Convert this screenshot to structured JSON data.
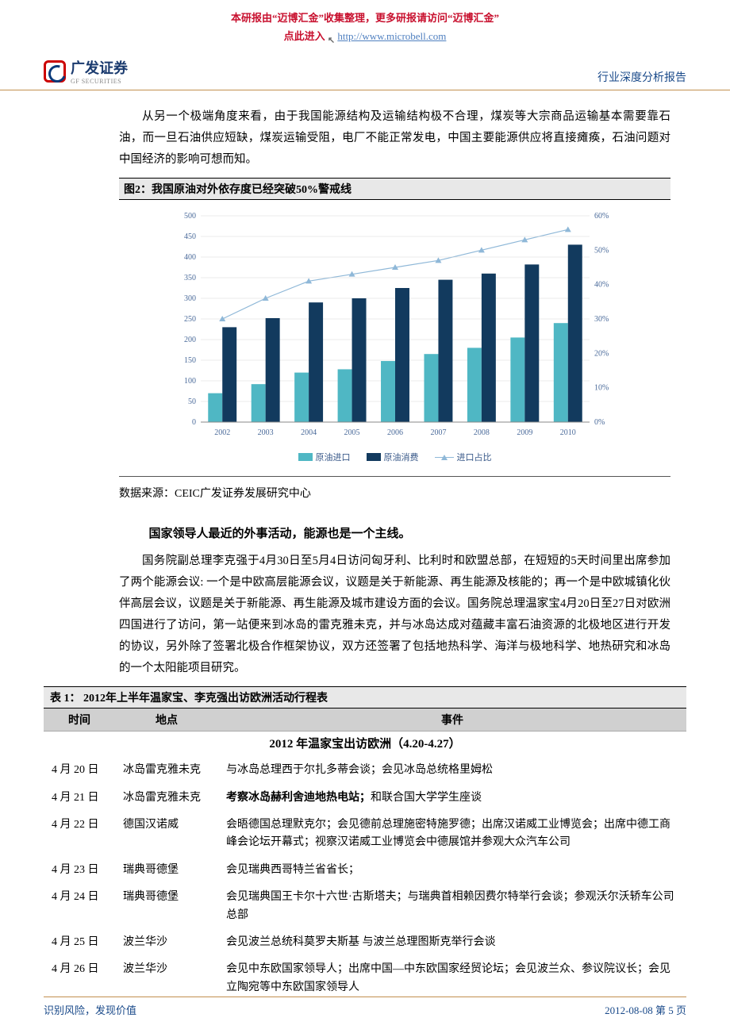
{
  "watermark": {
    "line1": "本研报由“迈博汇金”收集整理，更多研报请访问“迈博汇金”",
    "line2_prefix": "点此进入 ",
    "url": "http://www.microbell.com"
  },
  "header": {
    "company_cn": "广发证券",
    "company_en": "GF SECURITIES",
    "report_type": "行业深度分析报告"
  },
  "body": {
    "para1": "从另一个极端角度来看，由于我国能源结构及运输结构极不合理，煤炭等大宗商品运输基本需要靠石油，而一旦石油供应短缺，煤炭运输受阻，电厂不能正常发电，中国主要能源供应将直接瘫痪，石油问题对中国经济的影响可想而知。",
    "subheading": "国家领导人最近的外事活动，能源也是一个主线。",
    "para2": "国务院副总理李克强于4月30日至5月4日访问匈牙利、比利时和欧盟总部，在短短的5天时间里出席参加了两个能源会议: 一个是中欧高层能源会议，议题是关于新能源、再生能源及核能的；再一个是中欧城镇化伙伴高层会议，议题是关于新能源、再生能源及城市建设方面的会议。国务院总理温家宝4月20日至27日对欧洲四国进行了访问，第一站便来到冰岛的雷克雅未克，并与冰岛达成对蕴藏丰富石油资源的北极地区进行开发的协议，另外除了签署北极合作框架协议，双方还签署了包括地热科学、海洋与极地科学、地热研究和冰岛的一个太阳能项目研究。"
  },
  "figure2": {
    "title": "图2：我国原油对外依存度已经突破50%警戒线",
    "data_source": "数据来源：CEIC广发证券发展研究中心",
    "type": "bar+line",
    "categories": [
      "2002",
      "2003",
      "2004",
      "2005",
      "2006",
      "2007",
      "2008",
      "2009",
      "2010"
    ],
    "series": {
      "imports": {
        "label": "原油进口",
        "color": "#4fb7c4",
        "values": [
          70,
          92,
          120,
          128,
          148,
          165,
          180,
          205,
          240
        ]
      },
      "consumption": {
        "label": "原油消费",
        "color": "#123a5e",
        "values": [
          230,
          252,
          290,
          300,
          325,
          345,
          360,
          382,
          430
        ]
      },
      "share": {
        "label": "进口占比",
        "color": "#8fb8d8",
        "values": [
          30,
          36,
          41,
          43,
          45,
          47,
          50,
          53,
          56
        ],
        "unit": "%",
        "marker": "triangle"
      }
    },
    "left_axis": {
      "min": 0,
      "max": 500,
      "step": 50
    },
    "right_axis": {
      "min": 0,
      "max": 60,
      "step": 10,
      "format": "%"
    },
    "background_color": "#ffffff",
    "grid_color": "#d8d8d8",
    "label_fontsize": 10,
    "label_color": "#4a6a9a",
    "bar_group_width": 0.66
  },
  "table1": {
    "title": "表 1：  2012年上半年温家宝、李克强出访欧洲活动行程表",
    "headers": [
      "时间",
      "地点",
      "事件"
    ],
    "section_title": "2012 年温家宝出访欧洲（4.20-4.27）",
    "rows": [
      {
        "date": "4 月 20 日",
        "loc": "冰岛雷克雅未克",
        "event": "与冰岛总理西于尔扎多蒂会谈；会见冰岛总统格里姆松",
        "bold": ""
      },
      {
        "date": "4 月 21 日",
        "loc": "冰岛雷克雅未克",
        "event": "和联合国大学学生座谈",
        "bold": "考察冰岛赫利舍迪地热电站；"
      },
      {
        "date": "4 月 22 日",
        "loc": "德国汉诺威",
        "event": "会晤德国总理默克尔；会见德前总理施密特施罗德；出席汉诺威工业博览会；出席中德工商峰会论坛开幕式；视察汉诺威工业博览会中德展馆并参观大众汽车公司",
        "bold": ""
      },
      {
        "date": "4 月 23 日",
        "loc": "瑞典哥德堡",
        "event": "会见瑞典西哥特兰省省长；",
        "bold": ""
      },
      {
        "date": "4 月 24 日",
        "loc": "瑞典哥德堡",
        "event": "会见瑞典国王卡尔十六世·古斯塔夫；与瑞典首相赖因费尔特举行会谈；参观沃尔沃轿车公司总部",
        "bold": ""
      },
      {
        "date": "4 月 25 日",
        "loc": "波兰华沙",
        "event": "会见波兰总统科莫罗夫斯基 与波兰总理图斯克举行会谈",
        "bold": ""
      },
      {
        "date": "4 月 26 日",
        "loc": "波兰华沙",
        "event": "会见中东欧国家领导人；出席中国—中东欧国家经贸论坛；会见波兰众、参议院议长；会见立陶宛等中东欧国家领导人",
        "bold": ""
      }
    ]
  },
  "footer": {
    "left": "识别风险，发现价值",
    "right": "2012-08-08  第 5 页"
  }
}
